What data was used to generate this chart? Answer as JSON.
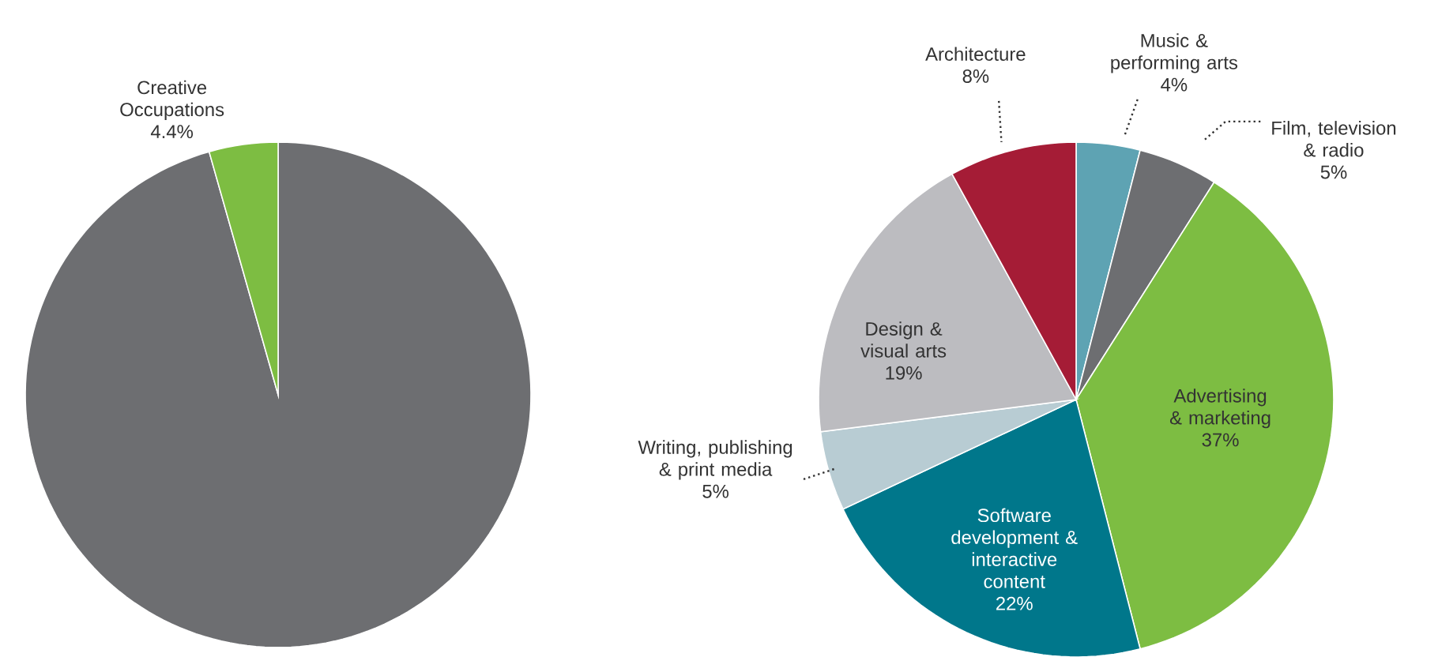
{
  "chart_data": [
    {
      "type": "pie",
      "categories": [
        null,
        "Creative Occupations"
      ],
      "values": [
        95.6,
        4.4
      ],
      "colors": [
        "#6d6e71",
        "#7dbd42"
      ],
      "value_labels": [
        null,
        "4.4%"
      ]
    },
    {
      "type": "pie",
      "categories": [
        "Music & performing arts",
        "Film, television & radio",
        "Advertising & marketing",
        "Software development & interactive content",
        "Writing, publishing & print media",
        "Design & visual arts",
        "Architecture"
      ],
      "values": [
        4,
        5,
        37,
        22,
        5,
        19,
        8
      ],
      "colors": [
        "#5ea3b3",
        "#6d6e71",
        "#7dbd42",
        "#00778b",
        "#b8ccd3",
        "#bcbcc0",
        "#a51c36"
      ],
      "value_labels": [
        "4%",
        "5%",
        "37%",
        "22%",
        "5%",
        "19%",
        "8%"
      ]
    }
  ]
}
